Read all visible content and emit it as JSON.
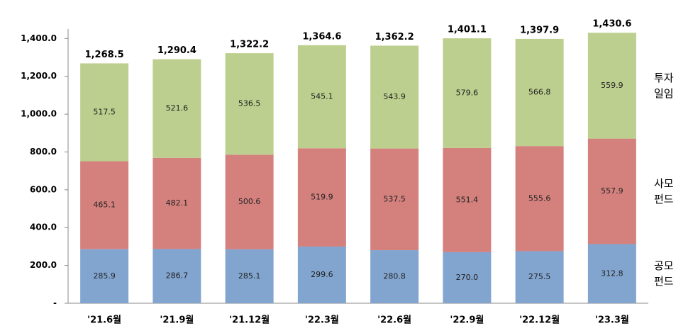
{
  "chart_data": {
    "type": "stacked-bar",
    "categories": [
      "'21.6월",
      "'21.9월",
      "'21.12월",
      "'22.3월",
      "'22.6월",
      "'22.9월",
      "'22.12월",
      "'23.3월"
    ],
    "series": [
      {
        "name": "공모펀드",
        "color": "#82a5d0",
        "values": [
          285.9,
          286.7,
          285.1,
          299.6,
          280.8,
          270.0,
          275.5,
          312.8
        ],
        "value_labels": [
          "285.9",
          "286.7",
          "285.1",
          "299.6",
          "280.8",
          "270.0",
          "275.5",
          "312.8"
        ]
      },
      {
        "name": "사모펀드",
        "color": "#d4817e",
        "values": [
          465.1,
          482.1,
          500.6,
          519.9,
          537.5,
          551.4,
          555.6,
          557.9
        ],
        "value_labels": [
          "465.1",
          "482.1",
          "500.6",
          "519.9",
          "537.5",
          "551.4",
          "555.6",
          "557.9"
        ]
      },
      {
        "name": "투자일임",
        "color": "#bccf8e",
        "values": [
          517.5,
          521.6,
          536.5,
          545.1,
          543.9,
          579.6,
          566.8,
          559.9
        ],
        "value_labels": [
          "517.5",
          "521.6",
          "536.5",
          "545.1",
          "543.9",
          "579.6",
          "566.8",
          "559.9"
        ]
      }
    ],
    "totals": {
      "values": [
        1268.5,
        1290.4,
        1322.2,
        1364.6,
        1362.2,
        1401.1,
        1397.9,
        1430.6
      ],
      "value_labels": [
        "1,268.5",
        "1,290.4",
        "1,322.2",
        "1,364.6",
        "1,362.2",
        "1,401.1",
        "1,397.9",
        "1,430.6"
      ]
    },
    "ylim": [
      0,
      1450
    ],
    "yticks": [
      {
        "value": 0,
        "label": "-"
      },
      {
        "value": 200,
        "label": "200.0"
      },
      {
        "value": 400,
        "label": "400.0"
      },
      {
        "value": 600,
        "label": "600.0"
      },
      {
        "value": 800,
        "label": "800.0"
      },
      {
        "value": 1000,
        "label": "1,000.0"
      },
      {
        "value": 1200,
        "label": "1,200.0"
      },
      {
        "value": 1400,
        "label": "1,400.0"
      }
    ],
    "grid": false
  }
}
